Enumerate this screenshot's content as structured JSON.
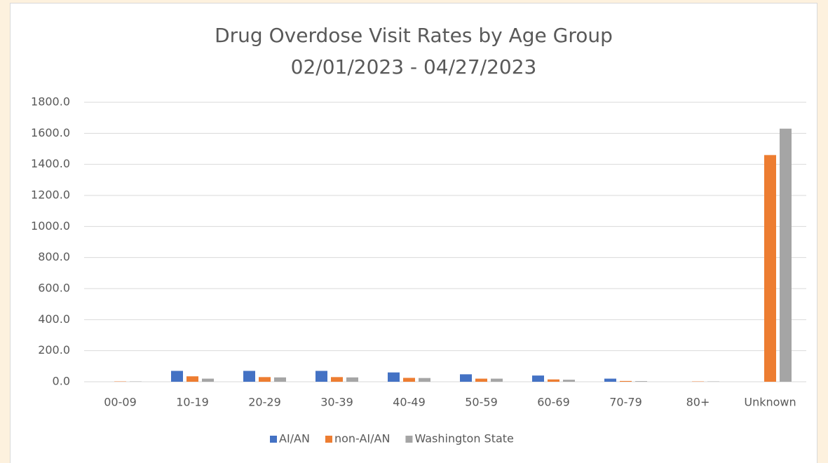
{
  "chart_data": {
    "type": "bar",
    "title": "Drug Overdose Visit Rates by Age Group",
    "subtitle": "02/01/2023 - 04/27/2023",
    "categories": [
      "00-09",
      "10-19",
      "20-29",
      "30-39",
      "40-49",
      "50-59",
      "60-69",
      "70-79",
      "80+",
      "Unknown"
    ],
    "series": [
      {
        "name": "AI/AN",
        "color": "#4472c4",
        "values": [
          0,
          70,
          70,
          70,
          60,
          48,
          40,
          20,
          0,
          0
        ]
      },
      {
        "name": "non-AI/AN",
        "color": "#ed7d31",
        "values": [
          2,
          35,
          30,
          30,
          25,
          20,
          15,
          5,
          2,
          1460
        ]
      },
      {
        "name": "Washington State",
        "color": "#a5a5a5",
        "values": [
          2,
          20,
          28,
          28,
          24,
          20,
          13,
          4,
          2,
          1630
        ]
      }
    ],
    "ylim": [
      0,
      1800
    ],
    "yticks": [
      {
        "value": 0,
        "label": "0.0"
      },
      {
        "value": 200,
        "label": "200.0"
      },
      {
        "value": 400,
        "label": "400.0"
      },
      {
        "value": 600,
        "label": "600.0"
      },
      {
        "value": 800,
        "label": "800.0"
      },
      {
        "value": 1000,
        "label": "1000.0"
      },
      {
        "value": 1200,
        "label": "1200.0"
      },
      {
        "value": 1400,
        "label": "1400.0"
      },
      {
        "value": 1600,
        "label": "1600.0"
      },
      {
        "value": 1800,
        "label": "1800.0"
      }
    ],
    "grid": true,
    "legend": "bottom"
  }
}
